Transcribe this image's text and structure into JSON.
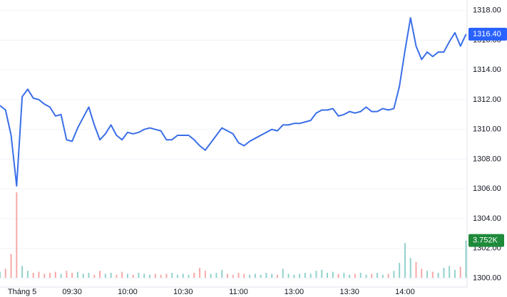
{
  "chart_data": {
    "type": "line",
    "categories": [
      null,
      null,
      null,
      null,
      "Tháng 5",
      null,
      null,
      null,
      null,
      null,
      null,
      null,
      null,
      "09:30",
      null,
      null,
      null,
      null,
      null,
      null,
      null,
      null,
      null,
      "10:00",
      null,
      null,
      null,
      null,
      null,
      null,
      null,
      null,
      null,
      "10:30",
      null,
      null,
      null,
      null,
      null,
      null,
      null,
      null,
      null,
      "11:00",
      null,
      null,
      null,
      null,
      null,
      null,
      null,
      null,
      null,
      "13:00",
      null,
      null,
      null,
      null,
      null,
      null,
      null,
      null,
      null,
      "13:30",
      null,
      null,
      null,
      null,
      null,
      null,
      null,
      null,
      null,
      "14:00",
      null,
      null,
      null,
      null,
      null,
      null,
      null,
      null,
      null,
      null,
      null
    ],
    "series": [
      {
        "color": "#3a6ee8",
        "values": [
          1311.6,
          1311.3,
          1309.6,
          1306.2,
          1312.2,
          1312.7,
          1312.1,
          1312.0,
          1311.7,
          1311.5,
          1310.9,
          1311.0,
          1309.3,
          1309.2,
          1310.1,
          1310.8,
          1311.5,
          1310.3,
          1309.3,
          1309.7,
          1310.3,
          1309.6,
          1309.3,
          1309.8,
          1309.7,
          1309.8,
          1310.0,
          1310.1,
          1310.0,
          1309.9,
          1309.3,
          1309.3,
          1309.6,
          1309.6,
          1309.6,
          1309.3,
          1308.9,
          1308.6,
          1309.1,
          1309.6,
          1310.1,
          1309.9,
          1309.7,
          1309.1,
          1308.9,
          1309.2,
          1309.4,
          1309.6,
          1309.8,
          1310.0,
          1309.9,
          1310.3,
          1310.3,
          1310.4,
          1310.4,
          1310.5,
          1310.6,
          1311.1,
          1311.3,
          1311.3,
          1311.4,
          1310.9,
          1311.0,
          1311.2,
          1311.1,
          1311.2,
          1311.5,
          1311.2,
          1311.2,
          1311.4,
          1311.3,
          1311.4,
          1312.9,
          1315.3,
          1317.5,
          1315.6,
          1314.7,
          1315.2,
          1314.9,
          1315.2,
          1315.2,
          1315.9,
          1316.5,
          1315.6,
          1316.4
        ]
      },
      {
        "type": "volume",
        "up_color": "#26a69a",
        "down_color": "#ef5350",
        "values": [
          600,
          900,
          2400,
          8600,
          1200,
          700,
          500,
          600,
          400,
          500,
          600,
          400,
          700,
          500,
          600,
          400,
          500,
          300,
          700,
          400,
          500,
          300,
          600,
          400,
          300,
          500,
          400,
          300,
          400,
          300,
          400,
          500,
          300,
          400,
          300,
          500,
          1000,
          700,
          400,
          500,
          800,
          400,
          300,
          500,
          400,
          300,
          400,
          300,
          500,
          400,
          300,
          900,
          400,
          300,
          400,
          500,
          400,
          700,
          800,
          500,
          600,
          400,
          500,
          300,
          400,
          500,
          300,
          400,
          500,
          300,
          400,
          700,
          1500,
          3500,
          2000,
          1600,
          900,
          700,
          600,
          500,
          1000,
          1200,
          800,
          1100,
          3752
        ]
      }
    ],
    "last_price": {
      "value": 1316.4,
      "label": "1316.40",
      "color": "#2962ff"
    },
    "last_volume": {
      "value": 3752,
      "label": "3.752K",
      "color": "#1e8a3a"
    },
    "ylim": [
      1299.4,
      1318.7
    ],
    "yticks": [
      {
        "value": 1300,
        "label": "1300.00"
      },
      {
        "value": 1302,
        "label": "1302.00"
      },
      {
        "value": 1304,
        "label": "1304.00"
      },
      {
        "value": 1306,
        "label": "1306.00"
      },
      {
        "value": 1308,
        "label": "1308.00"
      },
      {
        "value": 1310,
        "label": "1310.00"
      },
      {
        "value": 1312,
        "label": "1312.00"
      },
      {
        "value": 1314,
        "label": "1314.00"
      },
      {
        "value": 1316,
        "label": "1316.00"
      },
      {
        "value": 1318,
        "label": "1318.00"
      }
    ],
    "grid": true
  }
}
